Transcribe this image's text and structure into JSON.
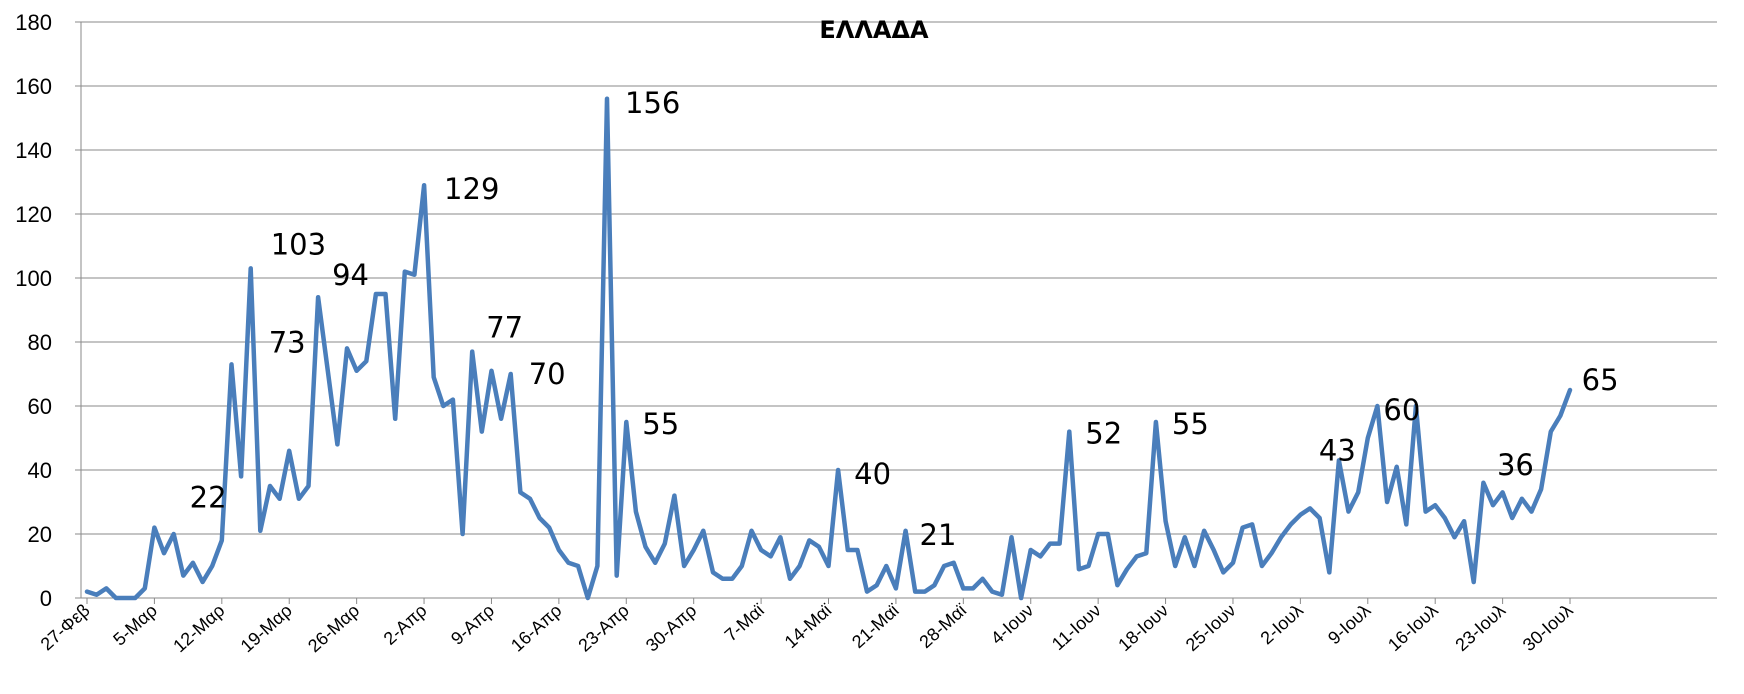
{
  "chart_data": {
    "type": "line",
    "title": "ΕΛΛΑΔΑ",
    "xlabel": "",
    "ylabel": "",
    "ylim": [
      0,
      180
    ],
    "yticks": [
      0,
      20,
      40,
      60,
      80,
      100,
      120,
      140,
      160,
      180
    ],
    "grid": true,
    "legend": "none",
    "x_start": "27-Φεβ",
    "x_tick_labels": [
      "27-Φεβ",
      "5-Μαρ",
      "12-Μαρ",
      "19-Μαρ",
      "26-Μαρ",
      "2-Απρ",
      "9-Απρ",
      "16-Απρ",
      "23-Απρ",
      "30-Απρ",
      "7-Μαϊ",
      "14-Μαϊ",
      "21-Μαϊ",
      "28-Μαϊ",
      "4-Ιουν",
      "11-Ιουν",
      "18-Ιουν",
      "25-Ιουν",
      "2-Ιουλ",
      "9-Ιουλ",
      "16-Ιουλ",
      "23-Ιουλ",
      "30-Ιουλ"
    ],
    "series": [
      {
        "name": "",
        "color": "#4a7ebb",
        "values": [
          2,
          1,
          3,
          0,
          0,
          0,
          3,
          22,
          14,
          20,
          7,
          11,
          5,
          10,
          18,
          73,
          38,
          103,
          21,
          35,
          31,
          46,
          31,
          35,
          94,
          71,
          48,
          78,
          71,
          74,
          95,
          95,
          56,
          102,
          101,
          129,
          69,
          60,
          62,
          20,
          77,
          52,
          71,
          56,
          70,
          33,
          31,
          25,
          22,
          15,
          11,
          10,
          0,
          10,
          156,
          7,
          55,
          27,
          16,
          11,
          17,
          32,
          10,
          15,
          21,
          8,
          6,
          6,
          10,
          21,
          15,
          13,
          19,
          6,
          10,
          18,
          16,
          10,
          40,
          15,
          15,
          2,
          4,
          10,
          3,
          21,
          2,
          2,
          4,
          10,
          11,
          3,
          3,
          6,
          2,
          1,
          19,
          0,
          15,
          13,
          17,
          17,
          52,
          9,
          10,
          20,
          20,
          4,
          9,
          13,
          14,
          55,
          24,
          10,
          19,
          10,
          21,
          15,
          8,
          11,
          22,
          23,
          10,
          14,
          19,
          23,
          26,
          28,
          25,
          8,
          43,
          27,
          33,
          50,
          60,
          30,
          41,
          23,
          60,
          27,
          29,
          25,
          19,
          24,
          5,
          36,
          29,
          33,
          25,
          31,
          27,
          34,
          52,
          57,
          65
        ]
      }
    ],
    "annotations": [
      {
        "x_index": 9,
        "value": 22,
        "text": "22"
      },
      {
        "x_index": 17,
        "value": 73,
        "text": "73"
      },
      {
        "x_index": 17,
        "value": 103,
        "text": "103"
      },
      {
        "x_index": 24,
        "value": 94,
        "text": "94"
      },
      {
        "x_index": 35,
        "value": 129,
        "text": "129"
      },
      {
        "x_index": 40,
        "value": 77,
        "text": "77"
      },
      {
        "x_index": 44,
        "value": 70,
        "text": "70"
      },
      {
        "x_index": 54,
        "value": 156,
        "text": "156"
      },
      {
        "x_index": 56,
        "value": 55,
        "text": "55"
      },
      {
        "x_index": 78,
        "value": 40,
        "text": "40"
      },
      {
        "x_index": 85,
        "value": 21,
        "text": "21"
      },
      {
        "x_index": 102,
        "value": 52,
        "text": "52"
      },
      {
        "x_index": 111,
        "value": 55,
        "text": "55"
      },
      {
        "x_index": 130,
        "value": 43,
        "text": "43"
      },
      {
        "x_index": 134,
        "value": 60,
        "text": "60"
      },
      {
        "x_index": 146,
        "value": 36,
        "text": "36"
      },
      {
        "x_index": 155,
        "value": 65,
        "text": "65"
      }
    ]
  }
}
